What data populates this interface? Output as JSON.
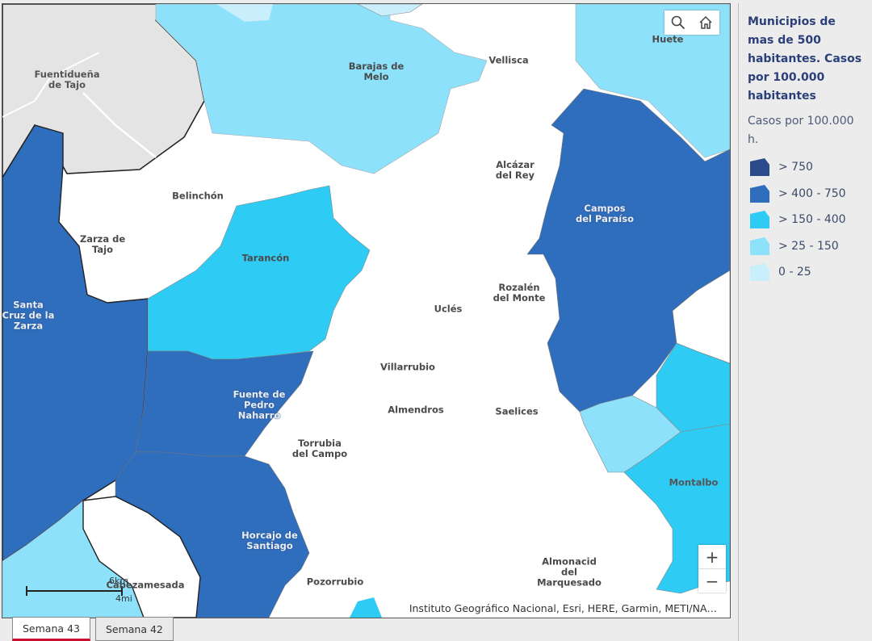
{
  "map": {
    "places": [
      {
        "name": "Fuentidueña\nde Tajo"
      },
      {
        "name": "Barajas de\nMelo"
      },
      {
        "name": "Vellisca"
      },
      {
        "name": "Huete"
      },
      {
        "name": "Alcázar\ndel Rey"
      },
      {
        "name": "Belinchón"
      },
      {
        "name": "Zarza de\nTajo"
      },
      {
        "name": "Tarancón"
      },
      {
        "name": "Campos\ndel Paraíso"
      },
      {
        "name": "Rozalén\ndel Monte"
      },
      {
        "name": "Uclés"
      },
      {
        "name": "Santa\nCruz de la\nZarza"
      },
      {
        "name": "Villarrubio"
      },
      {
        "name": "Fuente de\nPedro\nNaharro"
      },
      {
        "name": "Almendros"
      },
      {
        "name": "Saelices"
      },
      {
        "name": "Torrubia\ndel Campo"
      },
      {
        "name": "Montalbo"
      },
      {
        "name": "Horcajo de\nSantiago"
      },
      {
        "name": "Cabezamesada"
      },
      {
        "name": "Pozorrubio"
      },
      {
        "name": "Almonacid\ndel\nMarquesado"
      }
    ],
    "attribution": "Instituto Geográfico Nacional, Esri, HERE, Garmin, METI/NA…",
    "scale": {
      "km": "6km",
      "mi": "4mi"
    },
    "controls": {
      "zoom_in": "+",
      "zoom_out": "−",
      "search_icon": "search-icon",
      "home_icon": "home-icon"
    }
  },
  "legend": {
    "title": "Municipios de mas de 500 habitantes. Casos por 100.000 habitantes",
    "subtitle": "Casos por 100.000 h.",
    "classes": [
      {
        "label": "> 750",
        "color": "#2b4a8c"
      },
      {
        "label": "> 400 - 750",
        "color": "#2f6dbd"
      },
      {
        "label": "> 150 - 400",
        "color": "#2ecbf5"
      },
      {
        "label": "> 25 - 150",
        "color": "#8ee1fb"
      },
      {
        "label": "0 - 25",
        "color": "#c9eefc"
      }
    ]
  },
  "tabs": [
    {
      "label": "Semana 43",
      "active": true
    },
    {
      "label": "Semana 42",
      "active": false
    }
  ]
}
